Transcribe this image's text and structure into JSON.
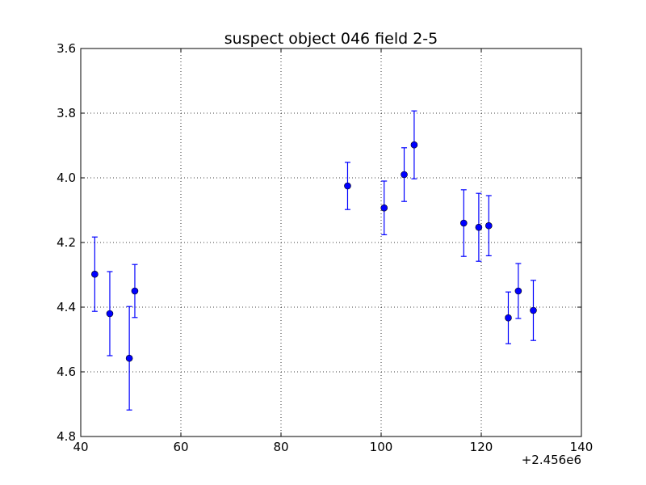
{
  "chart_data": {
    "type": "scatter",
    "title": "suspect object 046 field 2-5",
    "xlabel": "",
    "ylabel": "",
    "x_offset_label": "+2.456e6",
    "xlim": [
      40,
      140
    ],
    "ylim": [
      3.6,
      4.8
    ],
    "y_inverted": true,
    "grid": true,
    "x_ticks": [
      40,
      60,
      80,
      100,
      120,
      140
    ],
    "y_ticks": [
      3.6,
      3.8,
      4.0,
      4.2,
      4.4,
      4.6,
      4.8
    ],
    "x_tick_labels": [
      "40",
      "60",
      "80",
      "100",
      "120",
      "140"
    ],
    "y_tick_labels": [
      "3.6",
      "3.8",
      "4.0",
      "4.2",
      "4.4",
      "4.6",
      "4.8"
    ],
    "marker_color": "#0000ff",
    "points": [
      {
        "x": 42.8,
        "y": 4.298,
        "err": 0.115
      },
      {
        "x": 45.8,
        "y": 4.42,
        "err": 0.13
      },
      {
        "x": 49.7,
        "y": 4.558,
        "err": 0.16
      },
      {
        "x": 50.8,
        "y": 4.35,
        "err": 0.082
      },
      {
        "x": 93.3,
        "y": 4.025,
        "err": 0.073
      },
      {
        "x": 100.6,
        "y": 4.093,
        "err": 0.083
      },
      {
        "x": 104.6,
        "y": 3.99,
        "err": 0.083
      },
      {
        "x": 106.6,
        "y": 3.898,
        "err": 0.105
      },
      {
        "x": 116.5,
        "y": 4.14,
        "err": 0.103
      },
      {
        "x": 119.5,
        "y": 4.153,
        "err": 0.105
      },
      {
        "x": 121.5,
        "y": 4.148,
        "err": 0.093
      },
      {
        "x": 125.4,
        "y": 4.433,
        "err": 0.08
      },
      {
        "x": 127.4,
        "y": 4.35,
        "err": 0.085
      },
      {
        "x": 130.4,
        "y": 4.41,
        "err": 0.093
      }
    ]
  }
}
